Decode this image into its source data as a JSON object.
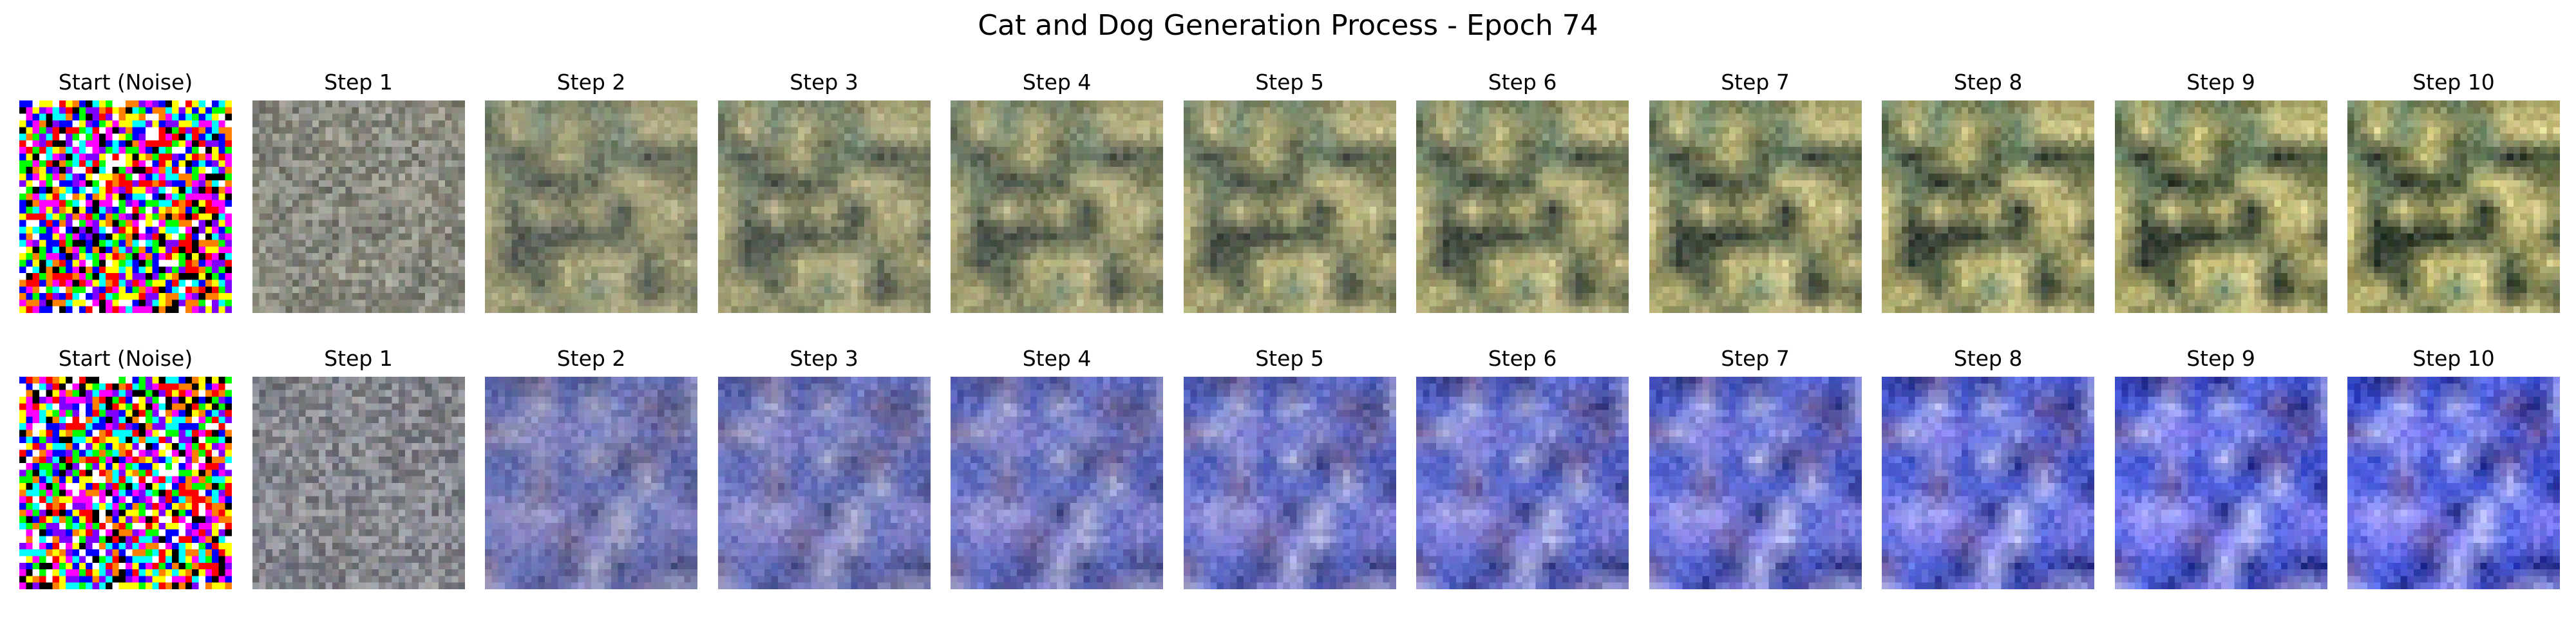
{
  "figure": {
    "title": "Cat and Dog Generation Process - Epoch 74",
    "rows": [
      {
        "tone": "green-yellow",
        "panels": [
          "Start (Noise)",
          "Step 1",
          "Step 2",
          "Step 3",
          "Step 4",
          "Step 5",
          "Step 6",
          "Step 7",
          "Step 8",
          "Step 9",
          "Step 10"
        ]
      },
      {
        "tone": "blue-purple",
        "panels": [
          "Start (Noise)",
          "Step 1",
          "Step 2",
          "Step 3",
          "Step 4",
          "Step 5",
          "Step 6",
          "Step 7",
          "Step 8",
          "Step 9",
          "Step 10"
        ]
      }
    ],
    "colors": {
      "row1_palette": [
        "#c9c17a",
        "#a9a466",
        "#7f8150",
        "#4d5a3e",
        "#d9cf8e",
        "#6f8a6a",
        "#2f3a2f"
      ],
      "row2_palette": [
        "#3d4fd1",
        "#5566e6",
        "#7d7cf2",
        "#9b9cf5",
        "#27308f",
        "#6b5ba8",
        "#b3b8f7"
      ],
      "noise_palette": [
        "#ff0000",
        "#00ff00",
        "#0000ff",
        "#ffff00",
        "#ff00ff",
        "#00ffff",
        "#ffffff",
        "#000000",
        "#ff8000",
        "#8000ff"
      ]
    }
  }
}
